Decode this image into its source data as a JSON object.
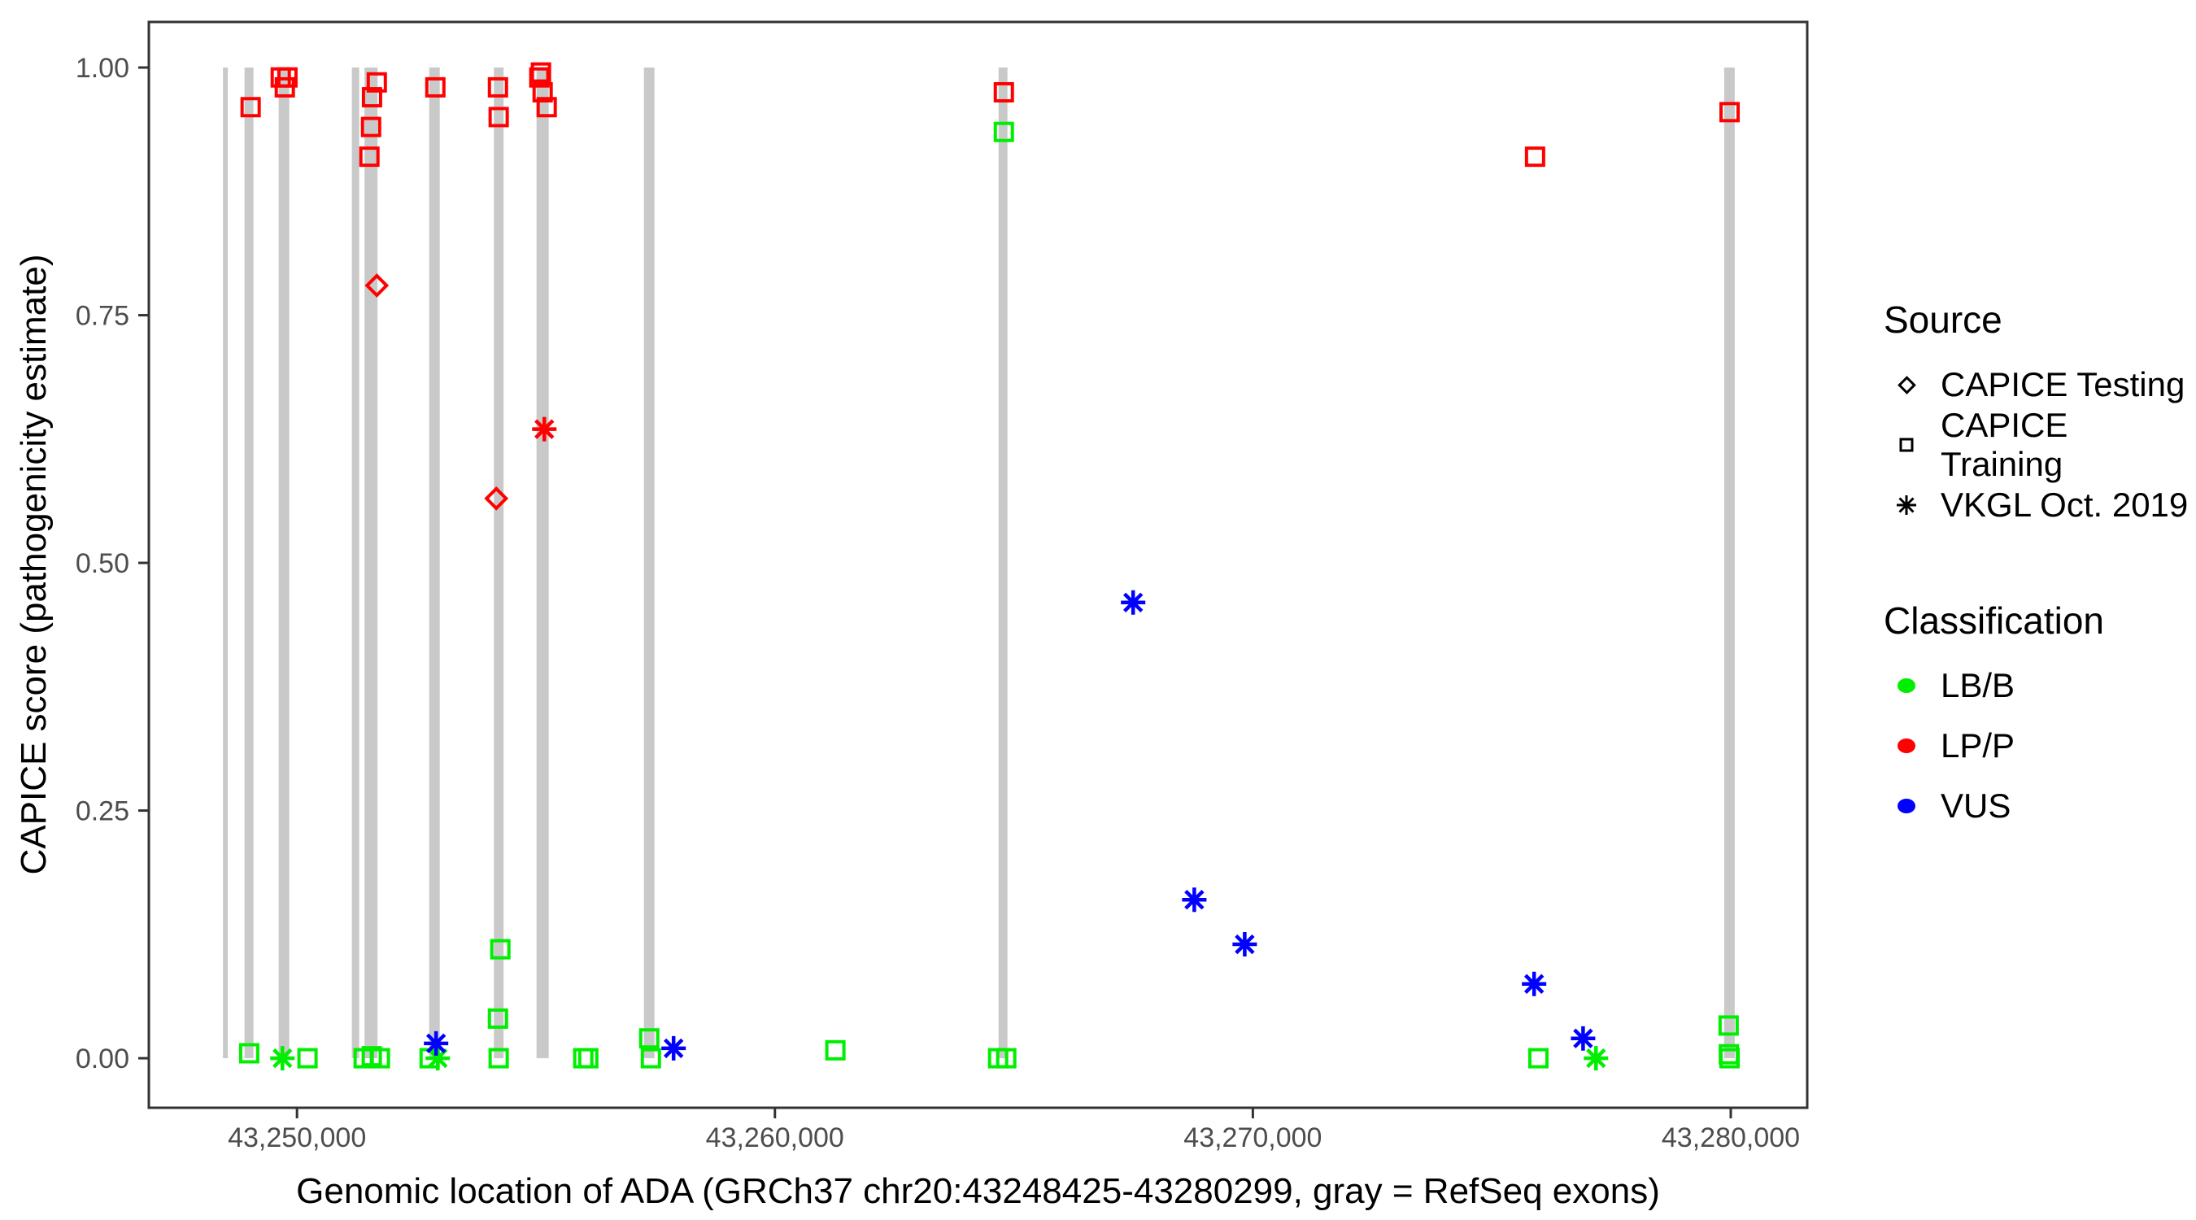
{
  "chart_data": {
    "type": "scatter",
    "title": "",
    "xlabel": "Genomic location of ADA (GRCh37 chr20:43248425-43280299, gray = RefSeq exons)",
    "ylabel": "CAPICE score (pathogenicity estimate)",
    "xlim": [
      43246900,
      43281600
    ],
    "ylim": [
      -0.05,
      1.046
    ],
    "grid": "off",
    "x_ticks": [
      {
        "value": 43250000,
        "label": "43,250,000"
      },
      {
        "value": 43260000,
        "label": "43,260,000"
      },
      {
        "value": 43270000,
        "label": "43,270,000"
      },
      {
        "value": 43280000,
        "label": "43,280,000"
      }
    ],
    "y_ticks": [
      {
        "value": 0.0,
        "label": "0.00"
      },
      {
        "value": 0.25,
        "label": "0.25"
      },
      {
        "value": 0.5,
        "label": "0.50"
      },
      {
        "value": 0.75,
        "label": "0.75"
      },
      {
        "value": 1.0,
        "label": "1.00"
      }
    ],
    "exon_color": "#C9C9C9",
    "exons": [
      {
        "start": 43248451,
        "end": 43248553
      },
      {
        "start": 43248902,
        "end": 43249089
      },
      {
        "start": 43249617,
        "end": 43249838
      },
      {
        "start": 43251148,
        "end": 43251301
      },
      {
        "start": 43251413,
        "end": 43251685
      },
      {
        "start": 43252766,
        "end": 43252987
      },
      {
        "start": 43254119,
        "end": 43254323
      },
      {
        "start": 43255012,
        "end": 43255267
      },
      {
        "start": 43257259,
        "end": 43257480
      },
      {
        "start": 43264679,
        "end": 43264866
      },
      {
        "start": 43279862,
        "end": 43280083
      }
    ],
    "series": [
      {
        "name": "LP/P — CAPICE Training",
        "classification": "LP/P",
        "source": "CAPICE Training",
        "marker": "square",
        "color": "#FF0000",
        "points": [
          [
            43249030,
            0.96
          ],
          [
            43249660,
            0.99
          ],
          [
            43249800,
            0.99
          ],
          [
            43249745,
            0.98
          ],
          [
            43251670,
            0.985
          ],
          [
            43251570,
            0.97
          ],
          [
            43251550,
            0.94
          ],
          [
            43251515,
            0.91
          ],
          [
            43252895,
            0.98
          ],
          [
            43254205,
            0.98
          ],
          [
            43254220,
            0.95
          ],
          [
            43255105,
            0.995
          ],
          [
            43255070,
            0.99
          ],
          [
            43255140,
            0.975
          ],
          [
            43255225,
            0.96
          ],
          [
            43264790,
            0.975
          ],
          [
            43275905,
            0.91
          ],
          [
            43279975,
            0.955
          ]
        ]
      },
      {
        "name": "LP/P — CAPICE Testing",
        "classification": "LP/P",
        "source": "CAPICE Testing",
        "marker": "diamond",
        "color": "#FF0000",
        "points": [
          [
            43251670,
            0.78
          ],
          [
            43254170,
            0.565
          ]
        ]
      },
      {
        "name": "LP/P — VKGL Oct. 2019",
        "classification": "LP/P",
        "source": "VKGL Oct. 2019",
        "marker": "asterisk",
        "color": "#FF0000",
        "points": [
          [
            43255175,
            0.635
          ]
        ]
      },
      {
        "name": "LB/B — CAPICE Training",
        "classification": "LB/B",
        "source": "CAPICE Training",
        "marker": "square",
        "color": "#00EE00",
        "points": [
          [
            43249000,
            0.005
          ],
          [
            43250220,
            0.0
          ],
          [
            43251395,
            0.0
          ],
          [
            43251565,
            0.002
          ],
          [
            43251735,
            0.0
          ],
          [
            43252775,
            0.0
          ],
          [
            43254255,
            0.11
          ],
          [
            43254205,
            0.04
          ],
          [
            43254220,
            0.0
          ],
          [
            43255990,
            0.0
          ],
          [
            43256095,
            0.0
          ],
          [
            43257370,
            0.02
          ],
          [
            43257405,
            0.0
          ],
          [
            43261265,
            0.008
          ],
          [
            43264670,
            0.0
          ],
          [
            43264840,
            0.0
          ],
          [
            43264790,
            0.935
          ],
          [
            43275975,
            0.0
          ],
          [
            43279955,
            0.033
          ],
          [
            43279960,
            0.004
          ],
          [
            43279975,
            0.0
          ]
        ]
      },
      {
        "name": "LB/B — VKGL Oct. 2019",
        "classification": "LB/B",
        "source": "VKGL Oct. 2019",
        "marker": "asterisk",
        "color": "#00EE00",
        "points": [
          [
            43249695,
            0.0
          ],
          [
            43252945,
            0.0
          ],
          [
            43277180,
            0.0
          ]
        ]
      },
      {
        "name": "VUS — VKGL Oct. 2019",
        "classification": "VUS",
        "source": "VKGL Oct. 2019",
        "marker": "asterisk",
        "color": "#0000FF",
        "points": [
          [
            43252910,
            0.015
          ],
          [
            43257880,
            0.01
          ],
          [
            43267495,
            0.46
          ],
          [
            43268775,
            0.16
          ],
          [
            43269830,
            0.115
          ],
          [
            43275885,
            0.075
          ],
          [
            43276910,
            0.02
          ]
        ]
      }
    ]
  },
  "legend": {
    "source": {
      "title": "Source",
      "items": [
        {
          "label": "CAPICE Testing",
          "marker": "diamond"
        },
        {
          "label": "CAPICE Training",
          "marker": "square"
        },
        {
          "label": "VKGL Oct. 2019",
          "marker": "asterisk"
        }
      ]
    },
    "classification": {
      "title": "Classification",
      "items": [
        {
          "label": "LB/B",
          "color": "#00EE00"
        },
        {
          "label": "LP/P",
          "color": "#FF0000"
        },
        {
          "label": "VUS",
          "color": "#0000FF"
        }
      ]
    }
  },
  "style": {
    "tick_label_color": "#4D4D4D",
    "axis_color": "#333333"
  }
}
